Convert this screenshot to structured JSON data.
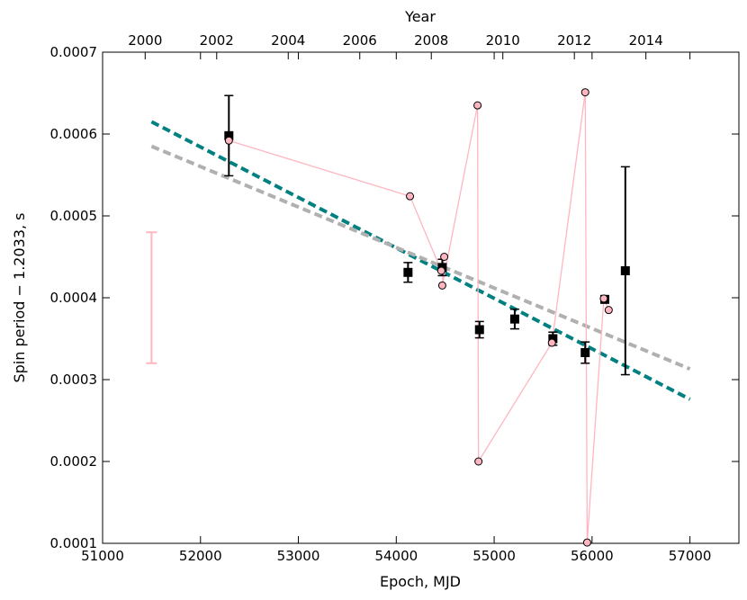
{
  "chart_data": {
    "type": "scatter",
    "xlabel": "Epoch, MJD",
    "ylabel": "Spin period − 1.2033, s",
    "top_xlabel": "Year",
    "xlim": [
      51000,
      57500
    ],
    "ylim": [
      0.0001,
      0.0007
    ],
    "top_xlim_year": [
      1998.81,
      2016.6
    ],
    "x_ticks": [
      51000,
      52000,
      53000,
      54000,
      55000,
      56000,
      57000
    ],
    "x_tick_labels": [
      "51000",
      "52000",
      "53000",
      "54000",
      "55000",
      "56000",
      "57000"
    ],
    "y_ticks": [
      0.0001,
      0.0002,
      0.0003,
      0.0004,
      0.0005,
      0.0006,
      0.0007
    ],
    "y_tick_labels": [
      "0.0001",
      "0.0002",
      "0.0003",
      "0.0004",
      "0.0005",
      "0.0006",
      "0.0007"
    ],
    "top_ticks": [
      2000,
      2002,
      2004,
      2006,
      2008,
      2010,
      2012,
      2014
    ],
    "top_tick_labels": [
      "2000",
      "2002",
      "2004",
      "2006",
      "2008",
      "2010",
      "2012",
      "2014"
    ],
    "grid": false,
    "colors": {
      "squares": "#000000",
      "circles_fill": "#ffb6c1",
      "circles_line": "#ffb6c1",
      "teal_fit": "#008080",
      "gray_fit": "#b0b0b0",
      "scale_bar": "#ffb6c1"
    },
    "series": [
      {
        "kind": "points_with_errorbars",
        "marker": "square",
        "points": [
          {
            "x": 52290,
            "y": 0.000598,
            "err": 4.9e-05
          },
          {
            "x": 54120,
            "y": 0.000431,
            "err": 1.2e-05
          },
          {
            "x": 54470,
            "y": 0.000437,
            "err": 1e-05
          },
          {
            "x": 54850,
            "y": 0.000361,
            "err": 1e-05
          },
          {
            "x": 55210,
            "y": 0.000374,
            "err": 1.2e-05
          },
          {
            "x": 55600,
            "y": 0.00035,
            "err": 8e-06
          },
          {
            "x": 55930,
            "y": 0.000333,
            "err": 1.3e-05
          },
          {
            "x": 56130,
            "y": 0.000398,
            "err": 4e-06
          },
          {
            "x": 56340,
            "y": 0.000433,
            "err": 0.000127
          }
        ]
      },
      {
        "kind": "connected_circles",
        "marker": "circle",
        "points": [
          {
            "x": 52290,
            "y": 0.000592
          },
          {
            "x": 54140,
            "y": 0.000524
          },
          {
            "x": 54460,
            "y": 0.000433
          },
          {
            "x": 54490,
            "y": 0.00045
          },
          {
            "x": 54470,
            "y": 0.000415
          },
          {
            "x": 54830,
            "y": 0.000635
          },
          {
            "x": 54840,
            "y": 0.0002
          },
          {
            "x": 55590,
            "y": 0.000345
          },
          {
            "x": 55930,
            "y": 0.000651
          },
          {
            "x": 55950,
            "y": 0.000101
          },
          {
            "x": 56120,
            "y": 0.000399
          },
          {
            "x": 56170,
            "y": 0.000385
          }
        ]
      },
      {
        "kind": "fit_line",
        "style": "dashed",
        "color": "#008080",
        "points": [
          {
            "x": 51500,
            "y": 0.000615
          },
          {
            "x": 57000,
            "y": 0.000276
          }
        ]
      },
      {
        "kind": "fit_line",
        "style": "dashed",
        "color": "#b0b0b0",
        "points": [
          {
            "x": 51500,
            "y": 0.000585
          },
          {
            "x": 57000,
            "y": 0.000313
          }
        ]
      },
      {
        "kind": "scale_bar",
        "color": "#ffb6c1",
        "x": 51500,
        "y_low": 0.00032,
        "y_high": 0.00048
      }
    ]
  }
}
